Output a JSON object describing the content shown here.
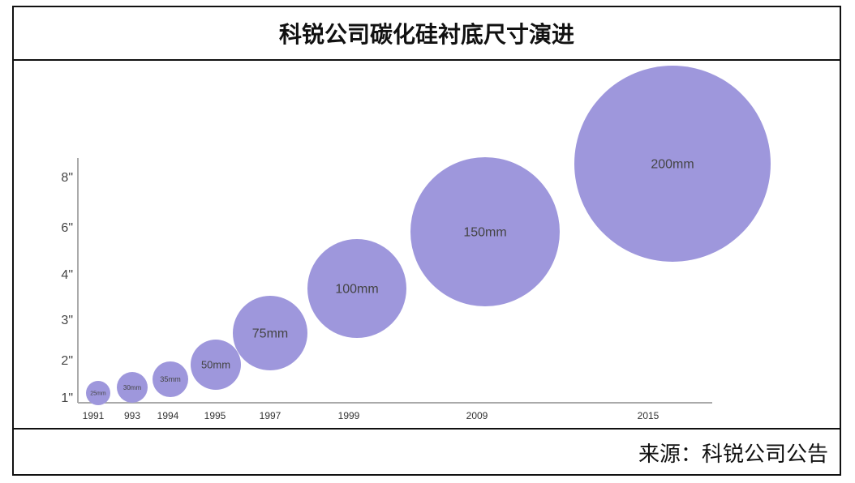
{
  "title": "科锐公司碳化硅衬底尺寸演进",
  "source": "来源：科锐公司公告",
  "colors": {
    "bubble": "#9e97dc",
    "axis": "#aaaaaa",
    "frame": "#111111"
  },
  "chart_data": {
    "type": "scatter",
    "title": "科锐公司碳化硅衬底尺寸演进",
    "xlabel": "",
    "ylabel": "",
    "y_ticks": [
      {
        "label": "1\"",
        "value": 1
      },
      {
        "label": "2\"",
        "value": 2
      },
      {
        "label": "3\"",
        "value": 3
      },
      {
        "label": "4\"",
        "value": 4
      },
      {
        "label": "6\"",
        "value": 6
      },
      {
        "label": "8\"",
        "value": 8
      }
    ],
    "points": [
      {
        "year_label": "1991",
        "diameter_mm": 25,
        "bubble_label": "25mm",
        "size_inch": 1
      },
      {
        "year_label": "993",
        "diameter_mm": 30,
        "bubble_label": "30mm",
        "size_inch": 1.2
      },
      {
        "year_label": "1994",
        "diameter_mm": 35,
        "bubble_label": "35mm",
        "size_inch": 1.4
      },
      {
        "year_label": "1995",
        "diameter_mm": 50,
        "bubble_label": "50mm",
        "size_inch": 2
      },
      {
        "year_label": "1997",
        "diameter_mm": 75,
        "bubble_label": "75mm",
        "size_inch": 3
      },
      {
        "year_label": "1999",
        "diameter_mm": 100,
        "bubble_label": "100mm",
        "size_inch": 4
      },
      {
        "year_label": "2009",
        "diameter_mm": 150,
        "bubble_label": "150mm",
        "size_inch": 6
      },
      {
        "year_label": "2015",
        "diameter_mm": 200,
        "bubble_label": "200mm",
        "size_inch": 8
      }
    ],
    "legend": "none",
    "grid": false
  }
}
